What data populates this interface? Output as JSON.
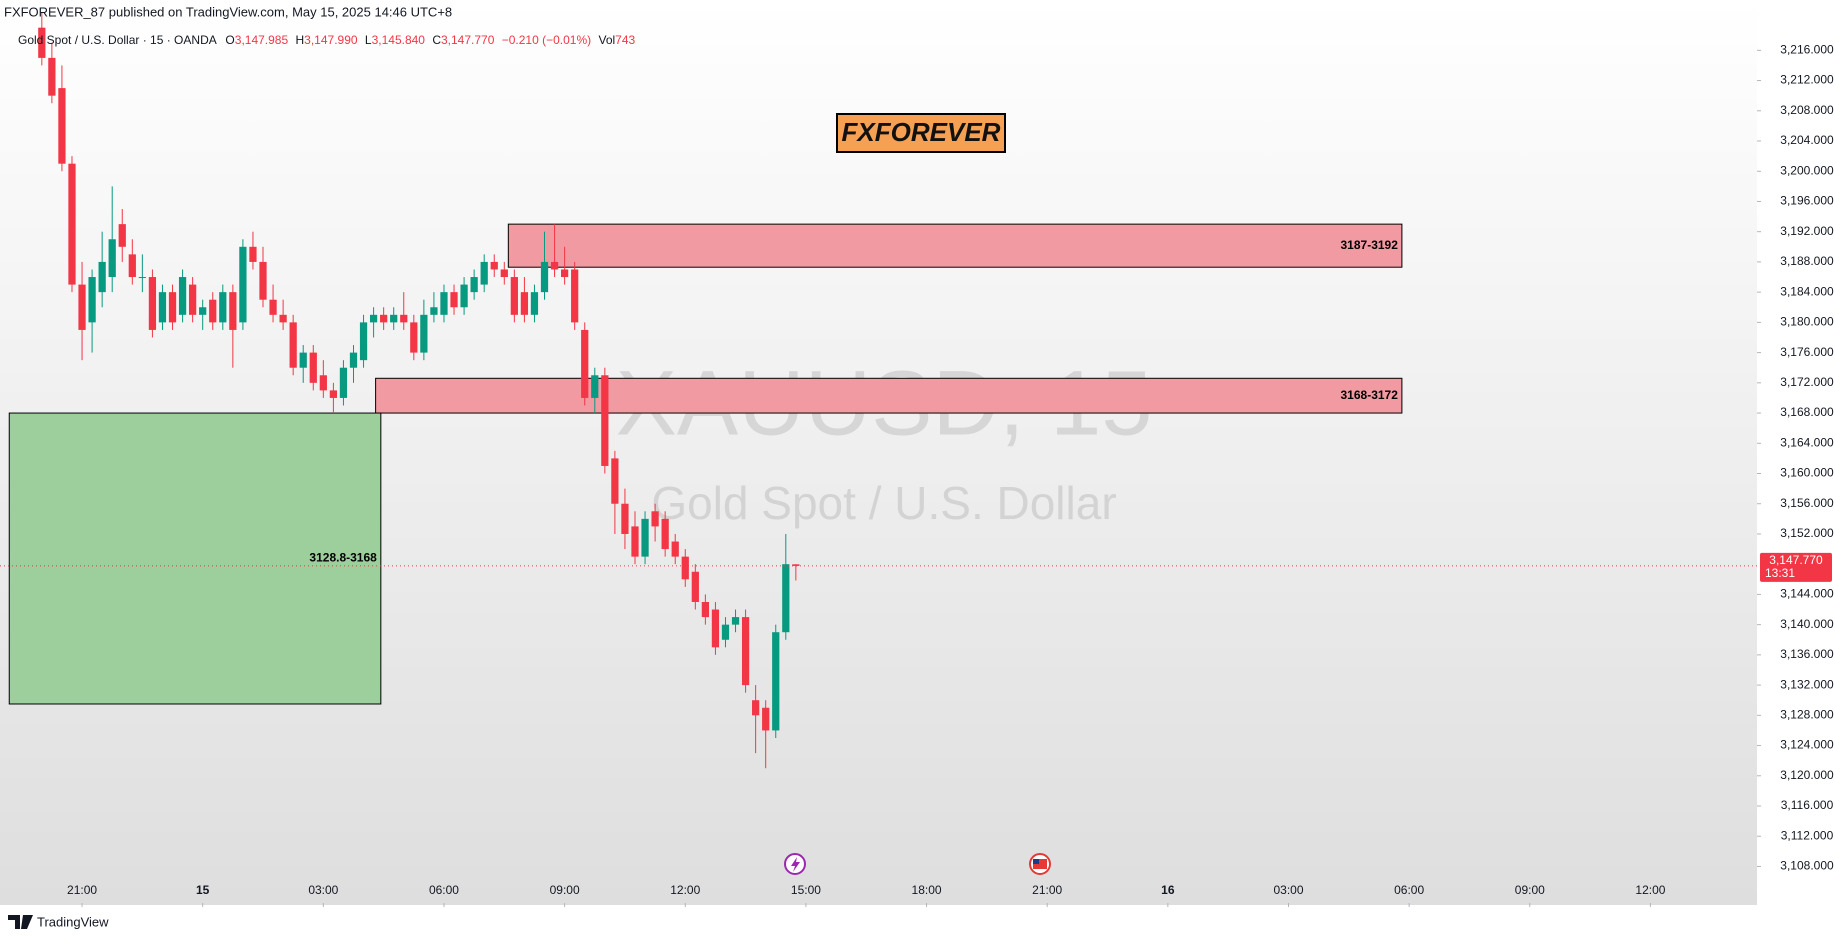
{
  "header": {
    "publish_line": "FXFOREVER_87 published on TradingView.com, May 15, 2025 14:46 UTC+8"
  },
  "legend": {
    "symbol": "Gold Spot / U.S. Dollar · 15 · OANDA",
    "o_label": "O",
    "o": "3,147.985",
    "h_label": "H",
    "h": "3,147.990",
    "l_label": "L",
    "l": "3,145.840",
    "c_label": "C",
    "c": "3,147.770",
    "change": "−0.210 (−0.01%)",
    "vol_label": "Vol",
    "vol": "743"
  },
  "watermark": {
    "symbol": "XAUUSD, 15",
    "name": "Gold Spot / U.S. Dollar"
  },
  "logo": {
    "text": "FXFOREVER"
  },
  "footer": {
    "brand": "TradingView"
  },
  "chart_data": {
    "type": "candlestick",
    "up_color": "#089981",
    "down_color": "#f23645",
    "x": [
      20,
      20.25,
      20.5,
      20.75,
      21,
      21.25,
      21.5,
      21.75,
      22,
      22.25,
      22.5,
      22.75,
      23,
      23.25,
      23.5,
      23.75,
      24,
      24.25,
      24.5,
      24.75,
      25,
      25.25,
      25.5,
      25.75,
      26,
      26.25,
      26.5,
      26.75,
      27,
      27.25,
      27.5,
      27.75,
      28,
      28.25,
      28.5,
      28.75,
      29,
      29.25,
      29.5,
      29.75,
      30,
      30.25,
      30.5,
      30.75,
      31,
      31.25,
      31.5,
      31.75,
      32,
      32.25,
      32.5,
      32.75,
      33,
      33.25,
      33.5,
      33.75,
      34,
      34.25,
      34.5,
      34.75,
      35,
      35.25,
      35.5,
      35.75,
      36,
      36.25,
      36.5,
      36.75,
      37,
      37.25,
      37.5,
      37.75,
      38,
      38.25,
      38.5,
      38.75
    ],
    "open": [
      3219,
      3215,
      3211,
      3201,
      3185,
      3180,
      3184,
      3186,
      3193,
      3189,
      3186,
      3186,
      3180,
      3184,
      3181,
      3185,
      3181,
      3183,
      3180,
      3184,
      3180,
      3190,
      3188,
      3183,
      3181,
      3180,
      3174,
      3176,
      3173,
      3171,
      3170,
      3174,
      3175,
      3180,
      3181,
      3180,
      3181,
      3180,
      3176,
      3181,
      3181,
      3184,
      3182,
      3184,
      3185,
      3188,
      3187,
      3186,
      3184,
      3181,
      3184,
      3188,
      3187,
      3187,
      3179,
      3170,
      3173,
      3162,
      3156,
      3153,
      3149,
      3155,
      3154,
      3151,
      3149,
      3147,
      3143,
      3142,
      3138,
      3140,
      3141,
      3130,
      3129,
      3126,
      3139,
      3147.985
    ],
    "high": [
      3221,
      3217,
      3214,
      3202,
      3188,
      3187,
      3192,
      3198,
      3195,
      3191,
      3189,
      3187,
      3185,
      3185,
      3187,
      3186,
      3183,
      3184,
      3185,
      3185,
      3191,
      3192,
      3190,
      3185,
      3183,
      3181,
      3177,
      3177,
      3175,
      3172,
      3175,
      3177,
      3181,
      3182,
      3182,
      3182,
      3184,
      3181,
      3183,
      3184,
      3185,
      3185,
      3186,
      3187,
      3189,
      3189,
      3188,
      3187,
      3186,
      3185,
      3192,
      3193,
      3190,
      3188,
      3180,
      3174,
      3174,
      3163,
      3158,
      3155,
      3155,
      3156,
      3155,
      3152,
      3150,
      3148,
      3144,
      3143,
      3141,
      3142,
      3142,
      3132,
      3130,
      3140,
      3152,
      3147.99
    ],
    "low": [
      3214,
      3209,
      3200,
      3184,
      3175,
      3176,
      3182,
      3184,
      3188,
      3185,
      3184,
      3178,
      3179,
      3179,
      3180,
      3180,
      3179,
      3179,
      3179,
      3174,
      3179,
      3187,
      3182,
      3180,
      3179,
      3173,
      3172,
      3171,
      3170,
      3168,
      3169,
      3172,
      3174,
      3178,
      3179,
      3179,
      3179,
      3175,
      3175,
      3180,
      3180,
      3181,
      3181,
      3183,
      3184,
      3186,
      3185,
      3180,
      3180,
      3180,
      3183,
      3186,
      3185,
      3179,
      3169,
      3168,
      3160,
      3152,
      3150,
      3148,
      3148,
      3151,
      3149,
      3148,
      3145,
      3142,
      3140,
      3136,
      3137,
      3139,
      3131,
      3123,
      3121,
      3125,
      3138,
      3145.84
    ],
    "close": [
      3215,
      3210,
      3201,
      3185,
      3179,
      3186,
      3188,
      3191,
      3190,
      3186,
      3186,
      3179,
      3184,
      3180,
      3186,
      3181,
      3182,
      3180,
      3184,
      3179,
      3190,
      3188,
      3183,
      3181,
      3180,
      3174,
      3176,
      3172,
      3171,
      3170,
      3174,
      3176,
      3180,
      3181,
      3180,
      3181,
      3180,
      3176,
      3181,
      3182,
      3184,
      3182,
      3185,
      3186,
      3188,
      3187,
      3186,
      3181,
      3181,
      3184,
      3188,
      3187,
      3186,
      3180,
      3170,
      3173,
      3161,
      3156,
      3152,
      3149,
      3154,
      3153,
      3150,
      3149,
      3146,
      3143,
      3141,
      3137,
      3140,
      3141,
      3132,
      3128,
      3126,
      3139,
      3148,
      3147.77
    ],
    "xlim": [
      18.96,
      62.65
    ],
    "xticks": [
      {
        "value": 21,
        "label": "21:00"
      },
      {
        "value": 24,
        "label": "15"
      },
      {
        "value": 27,
        "label": "03:00"
      },
      {
        "value": 30,
        "label": "06:00"
      },
      {
        "value": 33,
        "label": "09:00"
      },
      {
        "value": 36,
        "label": "12:00"
      },
      {
        "value": 39,
        "label": "15:00"
      },
      {
        "value": 42,
        "label": "18:00"
      },
      {
        "value": 45,
        "label": "21:00"
      },
      {
        "value": 48,
        "label": "16"
      },
      {
        "value": 51,
        "label": "03:00"
      },
      {
        "value": 54,
        "label": "06:00"
      },
      {
        "value": 57,
        "label": "09:00"
      },
      {
        "value": 60,
        "label": "12:00"
      }
    ],
    "ylim": [
      3102.9,
      3222.66
    ],
    "yticks": [
      {
        "value": 3108,
        "label": "3,108.000"
      },
      {
        "value": 3112,
        "label": "3,112.000"
      },
      {
        "value": 3116,
        "label": "3,116.000"
      },
      {
        "value": 3120,
        "label": "3,120.000"
      },
      {
        "value": 3124,
        "label": "3,124.000"
      },
      {
        "value": 3128,
        "label": "3,128.000"
      },
      {
        "value": 3132,
        "label": "3,132.000"
      },
      {
        "value": 3136,
        "label": "3,136.000"
      },
      {
        "value": 3140,
        "label": "3,140.000"
      },
      {
        "value": 3144,
        "label": "3,144.000"
      },
      {
        "value": 3152,
        "label": "3,152.000"
      },
      {
        "value": 3156,
        "label": "3,156.000"
      },
      {
        "value": 3160,
        "label": "3,160.000"
      },
      {
        "value": 3164,
        "label": "3,164.000"
      },
      {
        "value": 3168,
        "label": "3,168.000"
      },
      {
        "value": 3172,
        "label": "3,172.000"
      },
      {
        "value": 3176,
        "label": "3,176.000"
      },
      {
        "value": 3180,
        "label": "3,180.000"
      },
      {
        "value": 3184,
        "label": "3,184.000"
      },
      {
        "value": 3188,
        "label": "3,188.000"
      },
      {
        "value": 3192,
        "label": "3,192.000"
      },
      {
        "value": 3196,
        "label": "3,196.000"
      },
      {
        "value": 3200,
        "label": "3,200.000"
      },
      {
        "value": 3204,
        "label": "3,204.000"
      },
      {
        "value": 3208,
        "label": "3,208.000"
      },
      {
        "value": 3212,
        "label": "3,212.000"
      },
      {
        "value": 3216,
        "label": "3,216.000"
      }
    ],
    "zones": [
      {
        "label": "3187-3192",
        "y_low": 3187.3,
        "y_high": 3193,
        "x_start": 31.6,
        "x_end": 53.82,
        "color": "#f29aa1"
      },
      {
        "label": "3168-3172",
        "y_low": 3168,
        "y_high": 3172.6,
        "x_start": 28.3,
        "x_end": 53.82,
        "color": "#f29aa1"
      },
      {
        "label": "3128.8-3168",
        "y_low": 3129.5,
        "y_high": 3168,
        "x_start": 19.19,
        "x_end": 28.43,
        "color": "#9ccf9b"
      }
    ],
    "last_price": {
      "value": 3147.77,
      "label": "3,147.770",
      "countdown": "13:31",
      "color": "#f23645"
    }
  }
}
